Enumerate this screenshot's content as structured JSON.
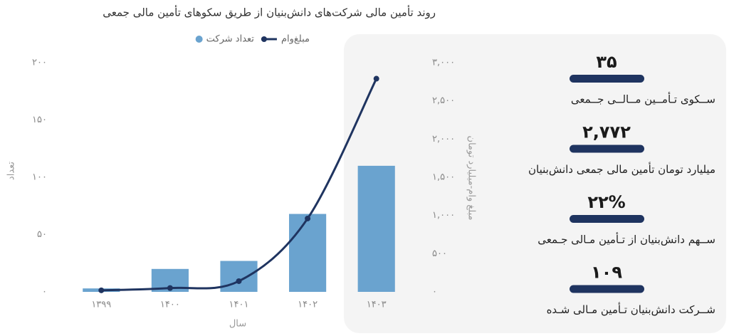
{
  "chart_data": {
    "type": "combo",
    "title": "روند تأمین مالی شرکت‌های دانش‌بنیان از طریق سکوهای تأمین مالی جمعی",
    "categories": [
      "۱۳۹۹",
      "۱۴۰۰",
      "۱۴۰۱",
      "۱۴۰۲",
      "۱۴۰۳"
    ],
    "x_label": "سال",
    "y_label": "تعداد",
    "y2_label": "مبلغ وام-میلیارد تومان",
    "series": [
      {
        "name": "مبلغ‌وام",
        "type": "line",
        "axis": "y2",
        "color": "#1f3460",
        "values": [
          20,
          50,
          140,
          960,
          2790
        ]
      },
      {
        "name": "تعداد شرکت",
        "type": "bar",
        "color": "#6aa3cf",
        "values": [
          3,
          20,
          27,
          68,
          110
        ]
      }
    ],
    "ylim": [
      0,
      200
    ],
    "yticks": [
      {
        "value": 0,
        "label": "۰"
      },
      {
        "value": 50,
        "label": "۵۰"
      },
      {
        "value": 100,
        "label": "۱۰۰"
      },
      {
        "value": 150,
        "label": "۱۵۰"
      },
      {
        "value": 200,
        "label": "۲۰۰"
      }
    ],
    "y2lim": [
      0,
      3000
    ],
    "y2ticks": [
      {
        "value": 0,
        "label": "۰"
      },
      {
        "value": 500,
        "label": "۵۰۰"
      },
      {
        "value": 1000,
        "label": "۱,۰۰۰"
      },
      {
        "value": 1500,
        "label": "۱,۵۰۰"
      },
      {
        "value": 2000,
        "label": "۲,۰۰۰"
      },
      {
        "value": 2500,
        "label": "۲,۵۰۰"
      },
      {
        "value": 3000,
        "label": "۳,۰۰۰"
      }
    ],
    "grid": false
  },
  "stats": [
    {
      "value": "۳۵",
      "label": "ســکوی تـأمــین مــالــی جــمعی"
    },
    {
      "value": "۲,۷۷۲",
      "label": "میلیارد تومان تأمین مالی جمعی دانش‌بنیان"
    },
    {
      "value": "۲۲%",
      "label": "ســهم دانش‌بنیان از تـأمین مـالی جـمعی"
    },
    {
      "value": "۱۰۹",
      "label": "شــرکت دانش‌بنیان تـأمین مـالی شـده"
    }
  ]
}
